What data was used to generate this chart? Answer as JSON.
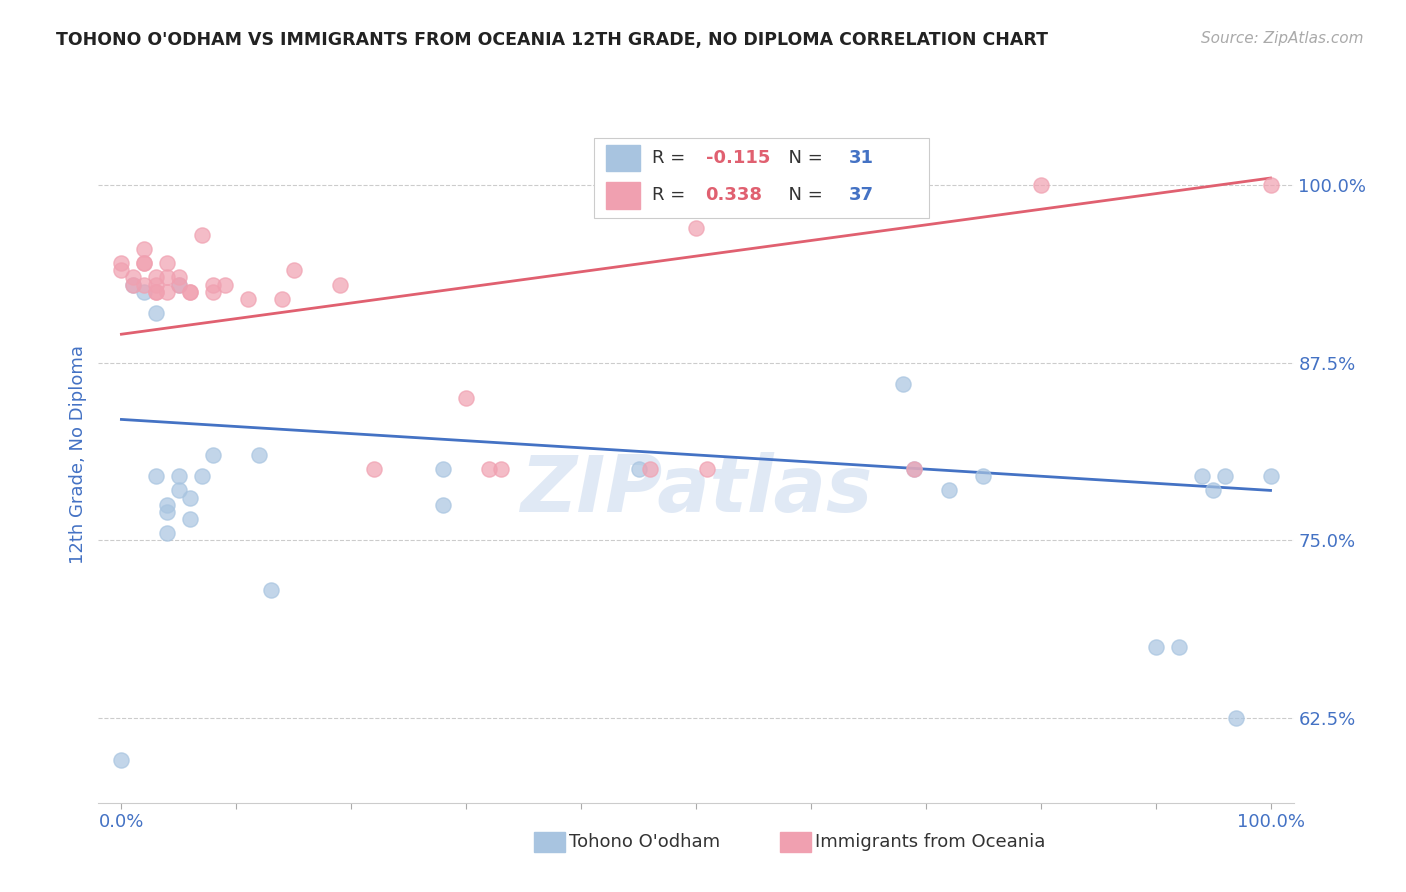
{
  "title": "TOHONO O'ODHAM VS IMMIGRANTS FROM OCEANIA 12TH GRADE, NO DIPLOMA CORRELATION CHART",
  "source_text": "Source: ZipAtlas.com",
  "ylabel": "12th Grade, No Diploma",
  "xlim": [
    -0.02,
    1.02
  ],
  "ylim": [
    0.565,
    1.055
  ],
  "ytick_values": [
    0.625,
    0.75,
    0.875,
    1.0
  ],
  "xtick_values": [
    0.0,
    0.1,
    0.2,
    0.3,
    0.4,
    0.5,
    0.6,
    0.7,
    0.8,
    0.9,
    1.0
  ],
  "xtick_labels_show": [
    0.0,
    1.0
  ],
  "series1_color": "#a8c4e0",
  "series2_color": "#f0a0b0",
  "line1_color": "#4472c4",
  "line2_color": "#e06070",
  "background_color": "#ffffff",
  "grid_color": "#cccccc",
  "watermark": "ZIPatlas",
  "legend_label1": "R = -0.115  N = 31",
  "legend_label2": "R = 0.338  N = 37",
  "legend_r1": "-0.115",
  "legend_r2": "0.338",
  "legend_n1": "31",
  "legend_n2": "37",
  "series1_x": [
    0.0,
    0.01,
    0.02,
    0.03,
    0.03,
    0.04,
    0.04,
    0.04,
    0.05,
    0.05,
    0.05,
    0.06,
    0.06,
    0.07,
    0.08,
    0.12,
    0.13,
    0.28,
    0.28,
    0.45,
    0.68,
    0.69,
    0.72,
    0.75,
    0.9,
    0.92,
    0.94,
    0.95,
    0.96,
    0.97,
    1.0
  ],
  "series1_y": [
    0.595,
    0.93,
    0.925,
    0.91,
    0.795,
    0.775,
    0.77,
    0.755,
    0.93,
    0.795,
    0.785,
    0.78,
    0.765,
    0.795,
    0.81,
    0.81,
    0.715,
    0.8,
    0.775,
    0.8,
    0.86,
    0.8,
    0.785,
    0.795,
    0.675,
    0.675,
    0.795,
    0.785,
    0.795,
    0.625,
    0.795
  ],
  "series2_x": [
    0.0,
    0.0,
    0.01,
    0.01,
    0.02,
    0.02,
    0.02,
    0.02,
    0.03,
    0.03,
    0.03,
    0.03,
    0.04,
    0.04,
    0.04,
    0.05,
    0.05,
    0.06,
    0.06,
    0.07,
    0.08,
    0.08,
    0.09,
    0.11,
    0.14,
    0.15,
    0.19,
    0.22,
    0.3,
    0.32,
    0.33,
    0.46,
    0.5,
    0.51,
    0.69,
    0.8,
    1.0
  ],
  "series2_y": [
    0.94,
    0.945,
    0.935,
    0.93,
    0.955,
    0.945,
    0.945,
    0.93,
    0.935,
    0.93,
    0.925,
    0.925,
    0.945,
    0.935,
    0.925,
    0.935,
    0.93,
    0.925,
    0.925,
    0.965,
    0.93,
    0.925,
    0.93,
    0.92,
    0.92,
    0.94,
    0.93,
    0.8,
    0.85,
    0.8,
    0.8,
    0.8,
    0.97,
    0.8,
    0.8,
    1.0,
    1.0
  ],
  "line1_x0": 0.0,
  "line1_x1": 1.0,
  "line1_y0": 0.835,
  "line1_y1": 0.785,
  "line2_x0": 0.0,
  "line2_x1": 1.0,
  "line2_y0": 0.895,
  "line2_y1": 1.005
}
